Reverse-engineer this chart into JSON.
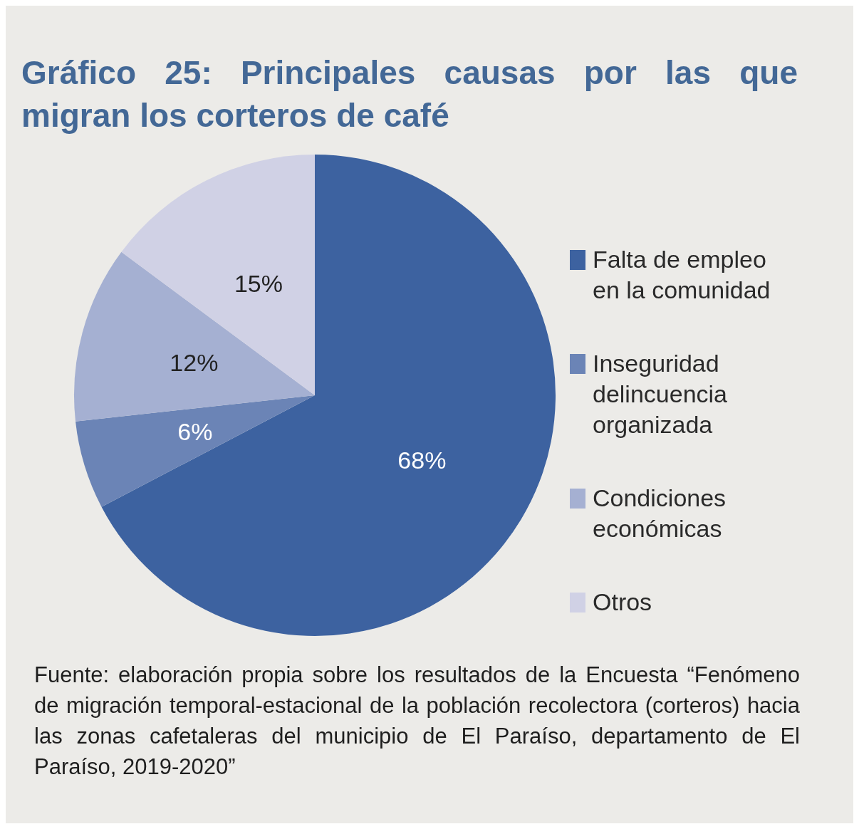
{
  "chart_data": {
    "type": "pie",
    "title": "Gráfico 25: Principales causas por las que migran los corteros de café",
    "categories": [
      "Falta de empleo en la comunidad",
      "Inseguridad delincuencia organizada",
      "Condiciones económicas",
      "Otros"
    ],
    "values": [
      68,
      6,
      12,
      15
    ],
    "colors": [
      "#3d62a0",
      "#6b84b6",
      "#a5b0d2",
      "#d0d1e5"
    ],
    "value_labels": [
      "68%",
      "6%",
      "12%",
      "15%"
    ],
    "legend": "right",
    "annotations": [
      "Fuente: elaboración propia sobre los resultados de la Encuesta “Fenómeno de migración temporal-estacional de la población recolectora (corteros) hacia las zonas cafetaleras del municipio de El Paraíso, departamento de El Paraíso, 2019-2020”"
    ]
  }
}
